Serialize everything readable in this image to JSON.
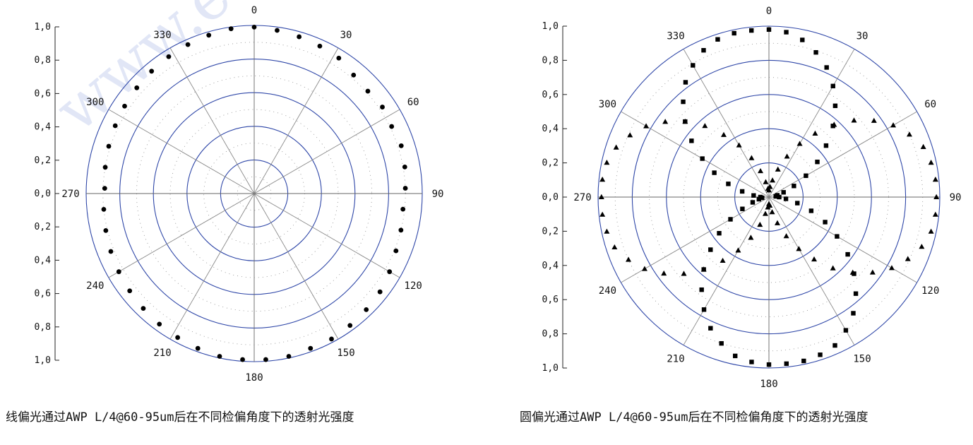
{
  "watermark": "www.eachwave.com",
  "chart_data": [
    {
      "type": "polar-scatter",
      "caption": "线偏光通过AWP L/4@60-95um后在不同检偏角度下的透射光强度",
      "r_ticks": [
        "1,0",
        "0,8",
        "0,6",
        "0,4",
        "0,2",
        "0,0",
        "0,2",
        "0,4",
        "0,6",
        "0,8",
        "1,0"
      ],
      "angle_labels": [
        "0",
        "30",
        "60",
        "90",
        "120",
        "150",
        "180",
        "210",
        "240",
        "270",
        "300",
        "330"
      ],
      "r_range": [
        0,
        1.0
      ],
      "marker": "circle",
      "angles_deg": [
        0,
        8,
        16,
        24,
        32,
        40,
        48,
        56,
        64,
        72,
        80,
        88,
        96,
        104,
        112,
        120,
        128,
        136,
        144,
        152,
        160,
        168,
        176,
        184,
        192,
        200,
        208,
        216,
        224,
        232,
        240,
        248,
        256,
        264,
        272,
        280,
        288,
        296,
        304,
        312,
        320,
        328,
        336,
        344,
        352
      ],
      "series": [
        {
          "values": [
            0.99,
            0.98,
            0.97,
            0.96,
            0.95,
            0.92,
            0.91,
            0.92,
            0.91,
            0.92,
            0.91,
            0.9,
            0.89,
            0.9,
            0.91,
            0.93,
            0.95,
            0.96,
            0.97,
            0.98,
            0.98,
            0.99,
            0.99,
            0.99,
            0.99,
            0.98,
            0.97,
            0.96,
            0.95,
            0.94,
            0.93,
            0.92,
            0.91,
            0.9,
            0.89,
            0.9,
            0.91,
            0.92,
            0.93,
            0.94,
            0.95,
            0.96,
            0.97,
            0.98,
            0.99
          ]
        }
      ]
    },
    {
      "type": "polar-scatter",
      "caption": "圆偏光通过AWP L/4@60-95um后在不同检偏角度下的透射光强度",
      "r_ticks": [
        "1,0",
        "0,8",
        "0,6",
        "0,4",
        "0,2",
        "0,0",
        "0,2",
        "0,4",
        "0,6",
        "0,8",
        "1,0"
      ],
      "angle_labels": [
        "0",
        "30",
        "60",
        "90",
        "120",
        "150",
        "180",
        "210",
        "240",
        "270",
        "300",
        "330"
      ],
      "r_range": [
        0,
        1.0
      ],
      "series": [
        {
          "marker": "square",
          "angles_deg": [
            0,
            6,
            12,
            18,
            24,
            30,
            36,
            42,
            48,
            54,
            60,
            66,
            72,
            78,
            84,
            90,
            96,
            102,
            108,
            114,
            120,
            126,
            132,
            138,
            144,
            150,
            156,
            162,
            168,
            174,
            180,
            186,
            192,
            198,
            204,
            210,
            216,
            222,
            228,
            234,
            240,
            246,
            252,
            258,
            264,
            270,
            276,
            282,
            288,
            294,
            300,
            306,
            312,
            318,
            324,
            330,
            336,
            342,
            348,
            354
          ],
          "values": [
            0.98,
            0.97,
            0.94,
            0.89,
            0.83,
            0.75,
            0.66,
            0.56,
            0.45,
            0.35,
            0.25,
            0.16,
            0.09,
            0.05,
            0.04,
            0.06,
            0.1,
            0.17,
            0.26,
            0.36,
            0.46,
            0.57,
            0.67,
            0.76,
            0.84,
            0.9,
            0.95,
            0.97,
            0.98,
            0.98,
            0.98,
            0.97,
            0.95,
            0.9,
            0.84,
            0.76,
            0.67,
            0.57,
            0.46,
            0.36,
            0.26,
            0.17,
            0.1,
            0.06,
            0.04,
            0.05,
            0.09,
            0.16,
            0.25,
            0.35,
            0.45,
            0.56,
            0.66,
            0.75,
            0.83,
            0.89,
            0.94,
            0.97,
            0.98,
            0.98
          ]
        },
        {
          "marker": "triangle",
          "angles_deg": [
            0,
            6,
            12,
            18,
            24,
            30,
            36,
            42,
            48,
            54,
            60,
            66,
            72,
            78,
            84,
            90,
            96,
            102,
            108,
            114,
            120,
            126,
            132,
            138,
            144,
            150,
            156,
            162,
            168,
            174,
            180,
            186,
            192,
            198,
            204,
            210,
            216,
            222,
            228,
            234,
            240,
            246,
            252,
            258,
            264,
            270,
            276,
            282,
            288,
            294,
            300,
            306,
            312,
            318,
            324,
            330,
            336,
            342,
            348,
            354
          ],
          "values": [
            0.04,
            0.06,
            0.1,
            0.17,
            0.26,
            0.36,
            0.46,
            0.57,
            0.67,
            0.76,
            0.84,
            0.9,
            0.95,
            0.97,
            0.98,
            0.98,
            0.98,
            0.97,
            0.94,
            0.89,
            0.83,
            0.75,
            0.66,
            0.56,
            0.45,
            0.35,
            0.25,
            0.16,
            0.09,
            0.05,
            0.04,
            0.06,
            0.1,
            0.17,
            0.26,
            0.36,
            0.46,
            0.57,
            0.67,
            0.76,
            0.84,
            0.9,
            0.95,
            0.97,
            0.98,
            0.98,
            0.98,
            0.97,
            0.94,
            0.89,
            0.83,
            0.75,
            0.66,
            0.56,
            0.45,
            0.35,
            0.25,
            0.16,
            0.09,
            0.05
          ]
        }
      ]
    }
  ]
}
